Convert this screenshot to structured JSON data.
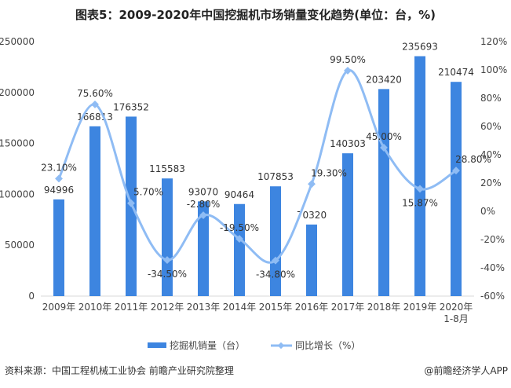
{
  "title": "图表5：2009-2020年中国挖掘机市场销量变化趋势(单位：台，%)",
  "source": "资料来源：中国工程机械工业协会 前瞻产业研究院整理",
  "credit": "@前瞻经济学人APP",
  "chart_data": {
    "type": "bar+line",
    "categories": [
      "2009年",
      "2010年",
      "2011年",
      "2012年",
      "2013年",
      "2014年",
      "2015年",
      "2016年",
      "2017年",
      "2018年",
      "2019年",
      "2020年\n1-8月"
    ],
    "series": [
      {
        "name": "挖掘机销量（台）",
        "type": "bar",
        "axis": "left",
        "color": "#3d85e0",
        "values": [
          94996,
          166813,
          176352,
          115583,
          93070,
          90464,
          107853,
          70320,
          140303,
          203420,
          235693,
          210474
        ]
      },
      {
        "name": "同比增长（%）",
        "type": "line",
        "axis": "right",
        "color": "#8fbcf4",
        "values": [
          23.1,
          75.6,
          5.7,
          -34.5,
          -2.8,
          -19.5,
          -34.8,
          19.3,
          99.5,
          45.0,
          15.87,
          28.8
        ]
      }
    ],
    "left_axis": {
      "range": [
        0,
        250000
      ],
      "ticks": [
        "0",
        "50000",
        "100000",
        "150000",
        "200000",
        "250000"
      ]
    },
    "right_axis": {
      "range": [
        -60,
        120
      ],
      "ticks": [
        "-60%",
        "-40%",
        "-20%",
        "0%",
        "20%",
        "40%",
        "60%",
        "80%",
        "100%",
        "120%"
      ]
    },
    "grid": false,
    "legend_position": "bottom"
  }
}
